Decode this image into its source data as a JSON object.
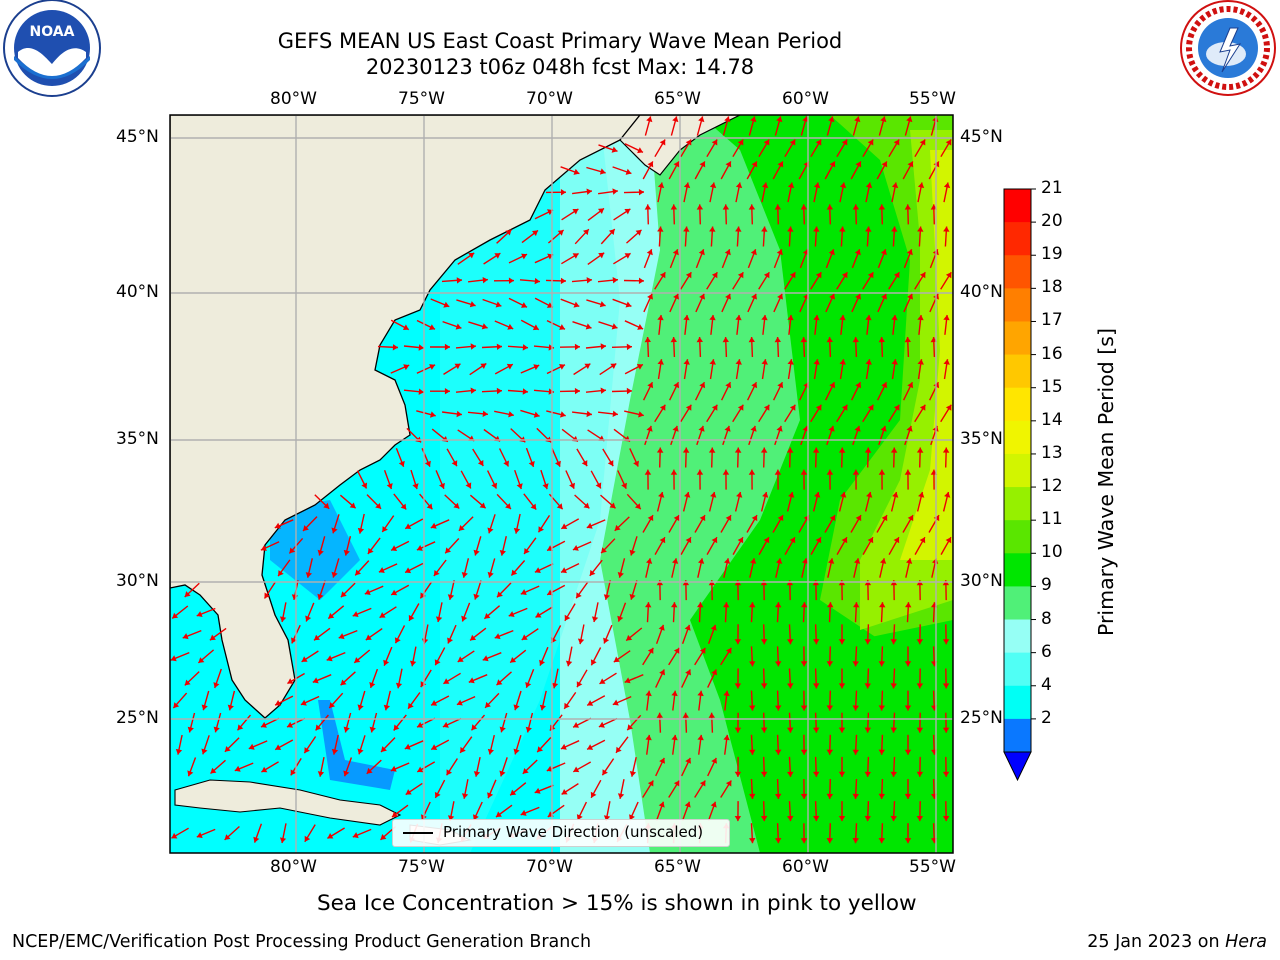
{
  "title": {
    "line1": "GEFS MEAN US East Coast Primary Wave Mean Period",
    "line2": "20230123 t06z 048h fcst   Max: 14.78"
  },
  "map": {
    "lon_ticks": [
      "80°W",
      "75°W",
      "70°W",
      "65°W",
      "60°W",
      "55°W"
    ],
    "lat_ticks": [
      "45°N",
      "40°N",
      "35°N",
      "30°N",
      "25°N"
    ],
    "legend_label": "Primary Wave Direction (unscaled)",
    "colors": {
      "land": "#eeecdc",
      "coast": "#000000",
      "arrow": "#ee0000",
      "grid": "#b0b0b0"
    }
  },
  "colorbar": {
    "label": "Primary Wave Mean Period [s]",
    "ticks": [
      "21",
      "20",
      "19",
      "18",
      "17",
      "16",
      "15",
      "14",
      "13",
      "12",
      "11",
      "10",
      "9",
      "8",
      "6",
      "4",
      "2"
    ],
    "colors": [
      "#ff0000",
      "#ff2800",
      "#ff5500",
      "#ff7f00",
      "#ffa500",
      "#ffc800",
      "#ffe600",
      "#f0f500",
      "#d2f500",
      "#96f000",
      "#5ae600",
      "#00e600",
      "#50f078",
      "#96fff5",
      "#50fff5",
      "#00fff5",
      "#0a78ff"
    ],
    "under_color": "#0000ff"
  },
  "subtitle": "Sea Ice Concentration > 15% is shown in pink to yellow",
  "footer": {
    "left": "NCEP/EMC/Verification Post Processing Product Generation Branch",
    "right_date": "25 Jan 2023 on ",
    "right_machine": "Hera"
  },
  "logos": {
    "left": {
      "icon": "noaa-logo",
      "text": "NOAA"
    },
    "right": {
      "icon": "nws-logo",
      "text": "NATIONAL WEATHER SERVICE"
    }
  }
}
